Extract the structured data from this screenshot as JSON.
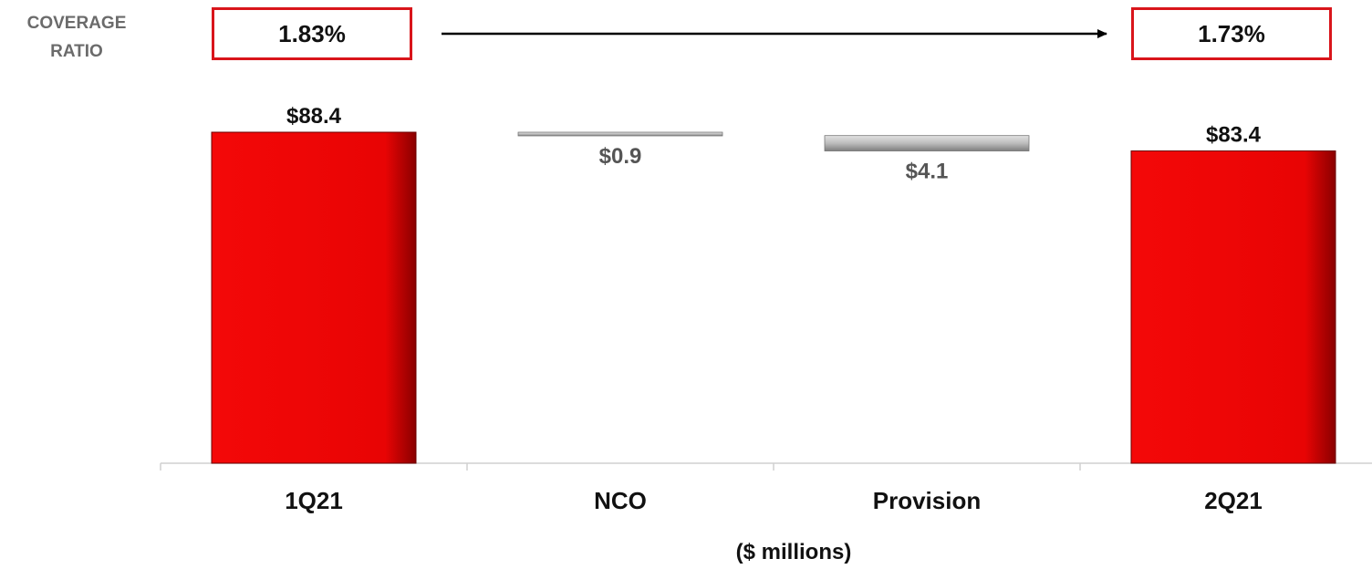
{
  "coverage": {
    "label_line1": "COVERAGE",
    "label_line2": "RATIO",
    "start": "1.83%",
    "end": "1.73%"
  },
  "unit_label": "($ millions)",
  "colors": {
    "total_bar": "#ee0505",
    "change_bar": "#b8b8b8",
    "box_border": "#d9151b",
    "value_text_total": "#111111",
    "value_text_change": "#555555"
  },
  "chart_data": {
    "type": "bar",
    "subtype": "waterfall",
    "categories": [
      "1Q21",
      "NCO",
      "Provision",
      "2Q21"
    ],
    "values": [
      88.4,
      -0.9,
      -4.1,
      83.4
    ],
    "bar_kinds": [
      "total",
      "change",
      "change",
      "total"
    ],
    "data_labels": [
      "$88.4",
      "$0.9",
      "$4.1",
      "$83.4"
    ],
    "ylim": [
      0,
      88.4
    ],
    "grid": false,
    "legend": "none",
    "title": "",
    "xlabel": "($ millions)",
    "ylabel": ""
  }
}
